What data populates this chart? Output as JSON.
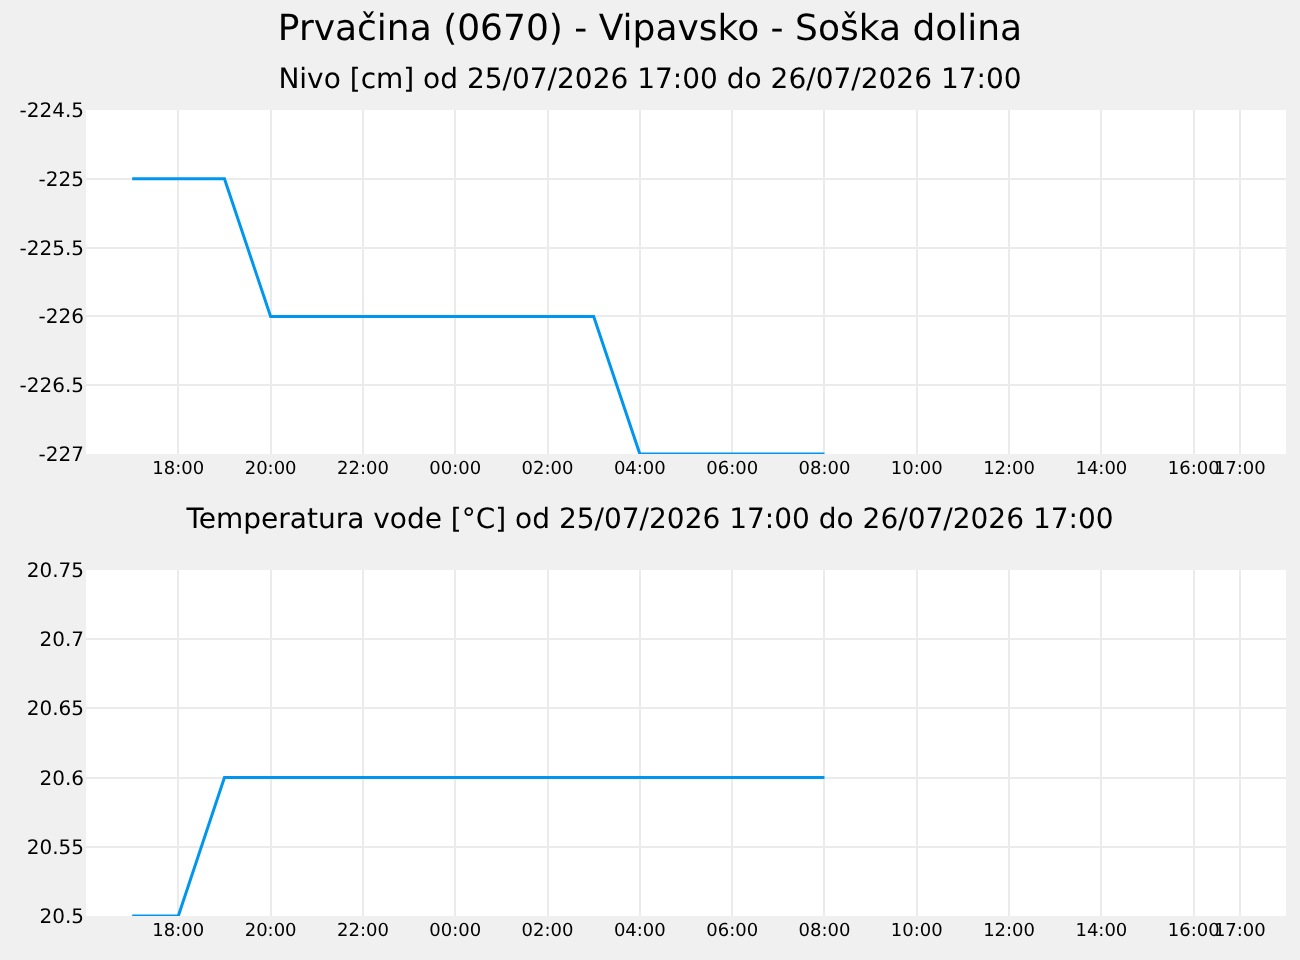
{
  "chart_data": [
    {
      "type": "line",
      "title": "Prvačina (0670) - Vipavsko - Soška dolina",
      "subtitle": "Nivo [cm] od 25/07/2026 17:00 do 26/07/2026 17:00",
      "x": [
        "2026-07-25T17:00",
        "2026-07-25T19:00",
        "2026-07-25T20:00",
        "2026-07-26T03:00",
        "2026-07-26T04:00",
        "2026-07-26T08:00"
      ],
      "series": [
        {
          "color": "#0096f0",
          "values": [
            -225,
            -225,
            -226,
            -226,
            -227,
            -227
          ]
        }
      ],
      "xlim": [
        "2026-07-25T16:00",
        "2026-07-26T18:00"
      ],
      "xticks": [
        {
          "value": "2026-07-25T18:00",
          "label": "18:00"
        },
        {
          "value": "2026-07-25T20:00",
          "label": "20:00"
        },
        {
          "value": "2026-07-25T22:00",
          "label": "22:00"
        },
        {
          "value": "2026-07-26T00:00",
          "label": "00:00"
        },
        {
          "value": "2026-07-26T02:00",
          "label": "02:00"
        },
        {
          "value": "2026-07-26T04:00",
          "label": "04:00"
        },
        {
          "value": "2026-07-26T06:00",
          "label": "06:00"
        },
        {
          "value": "2026-07-26T08:00",
          "label": "08:00"
        },
        {
          "value": "2026-07-26T10:00",
          "label": "10:00"
        },
        {
          "value": "2026-07-26T12:00",
          "label": "12:00"
        },
        {
          "value": "2026-07-26T14:00",
          "label": "14:00"
        },
        {
          "value": "2026-07-26T16:00",
          "label": "16:00"
        },
        {
          "value": "2026-07-26T17:00",
          "label": "17:00"
        }
      ],
      "ylim": [
        -227,
        -224.5
      ],
      "yticks": [
        -227,
        -226.5,
        -226,
        -225.5,
        -225,
        -224.5
      ],
      "grid": true,
      "marker": "none",
      "line_style": "solid"
    },
    {
      "type": "line",
      "title": "Temperatura vode [°C] od 25/07/2026 17:00 do 26/07/2026 17:00",
      "x": [
        "2026-07-25T17:00",
        "2026-07-25T18:00",
        "2026-07-25T19:00",
        "2026-07-26T08:00"
      ],
      "series": [
        {
          "color": "#0096f0",
          "values": [
            20.5,
            20.5,
            20.6,
            20.6
          ]
        }
      ],
      "xlim": [
        "2026-07-25T16:00",
        "2026-07-26T18:00"
      ],
      "xticks": [
        {
          "value": "2026-07-25T18:00",
          "label": "18:00"
        },
        {
          "value": "2026-07-25T20:00",
          "label": "20:00"
        },
        {
          "value": "2026-07-25T22:00",
          "label": "22:00"
        },
        {
          "value": "2026-07-26T00:00",
          "label": "00:00"
        },
        {
          "value": "2026-07-26T02:00",
          "label": "02:00"
        },
        {
          "value": "2026-07-26T04:00",
          "label": "04:00"
        },
        {
          "value": "2026-07-26T06:00",
          "label": "06:00"
        },
        {
          "value": "2026-07-26T08:00",
          "label": "08:00"
        },
        {
          "value": "2026-07-26T10:00",
          "label": "10:00"
        },
        {
          "value": "2026-07-26T12:00",
          "label": "12:00"
        },
        {
          "value": "2026-07-26T14:00",
          "label": "14:00"
        },
        {
          "value": "2026-07-26T16:00",
          "label": "16:00"
        },
        {
          "value": "2026-07-26T17:00",
          "label": "17:00"
        }
      ],
      "ylim": [
        20.5,
        20.75
      ],
      "yticks": [
        20.5,
        20.55,
        20.6,
        20.65,
        20.7,
        20.75
      ],
      "grid": true,
      "marker": "none",
      "line_style": "solid"
    }
  ]
}
